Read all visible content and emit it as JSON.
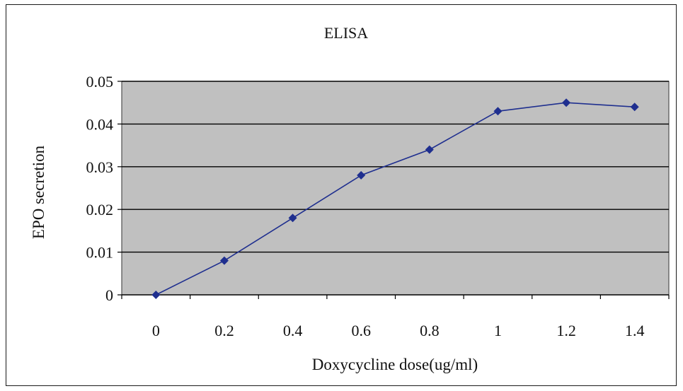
{
  "chart_data": {
    "type": "line",
    "title": "ELISA",
    "xlabel": "Doxycycline dose(ug/ml)",
    "ylabel": "EPO secretion",
    "x": [
      0,
      0.2,
      0.4,
      0.6,
      0.8,
      1,
      1.2,
      1.4
    ],
    "x_tick_labels": [
      "0",
      "0.2",
      "0.4",
      "0.6",
      "0.8",
      "1",
      "1.2",
      "1.4"
    ],
    "y_tick_labels": [
      "0",
      "0.01",
      "0.02",
      "0.03",
      "0.04",
      "0.05"
    ],
    "ylim": [
      0,
      0.05
    ],
    "grid": "horizontal",
    "legend": "none",
    "series": [
      {
        "values": [
          0.0,
          0.008,
          0.018,
          0.028,
          0.034,
          0.043,
          0.045,
          0.044
        ]
      }
    ],
    "colors": {
      "plot_background": "#c0c0c0",
      "series_line": "#1f2f8f",
      "grid": "#000000"
    }
  }
}
